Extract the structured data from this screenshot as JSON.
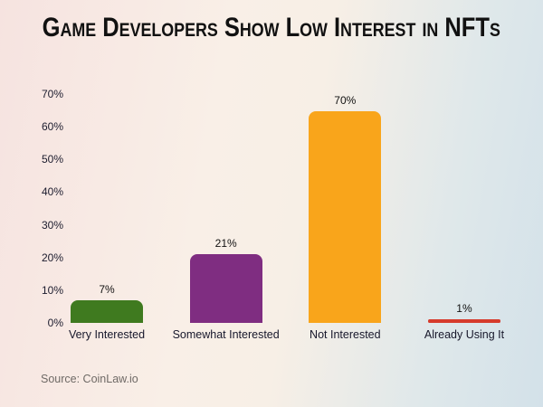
{
  "page": {
    "title": "Game Developers Show Low Interest in NFTs",
    "source": "Source: CoinLaw.io"
  },
  "colors": {
    "background_left": "#f6e3e0",
    "background_mid": "#f9efe7",
    "background_right": "#d3e1e9",
    "title_text": "#111111",
    "axis_text": "#1c1c2e",
    "category_text": "#17172b",
    "source_text": "#6f6a66"
  },
  "chart_data": {
    "type": "bar",
    "title": "Game Developers Show Low Interest in NFTs",
    "categories": [
      "Very Interested",
      "Somewhat Interested",
      "Not Interested",
      "Already Using It"
    ],
    "values": [
      7,
      21,
      70,
      1
    ],
    "value_labels": [
      "7%",
      "21%",
      "70%",
      "1%"
    ],
    "bar_colors": [
      "#3f7a1f",
      "#7f2d81",
      "#f9a51b",
      "#d63b2c"
    ],
    "xlabel": "",
    "ylabel": "",
    "ylim": [
      0,
      70
    ],
    "ytick_values": [
      0,
      10,
      20,
      30,
      40,
      50,
      60,
      70
    ],
    "ytick_labels": [
      "0%",
      "10%",
      "20%",
      "30%",
      "40%",
      "50%",
      "60%",
      "70%"
    ],
    "grid": false,
    "legend": "none",
    "source": "Source: CoinLaw.io"
  }
}
